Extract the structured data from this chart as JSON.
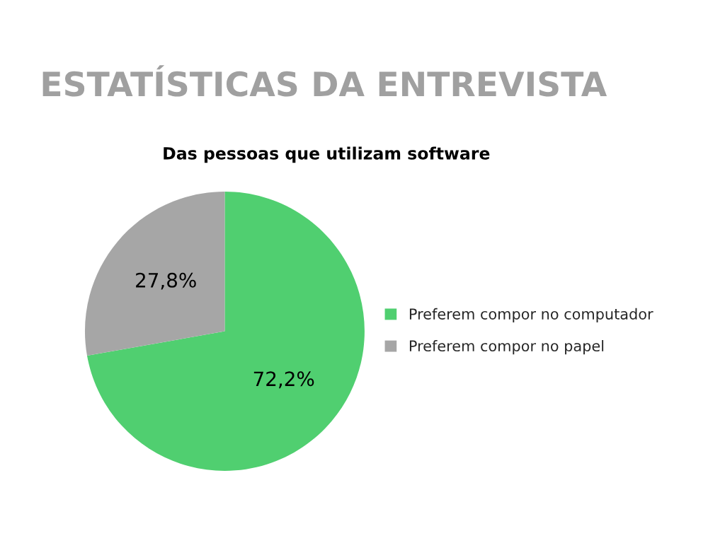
{
  "chart_data": {
    "type": "pie",
    "title": "ESTATÍSTICAS DA ENTREVISTA",
    "subtitle": "Das pessoas que utilizam software",
    "categories": [
      "Preferem compor no computador",
      "Preferem compor no papel"
    ],
    "values": [
      72.2,
      27.8
    ],
    "value_labels": [
      "72,2%",
      "27,8%"
    ],
    "colors": [
      "#50cf70",
      "#a6a6a6"
    ],
    "legend": "right"
  }
}
